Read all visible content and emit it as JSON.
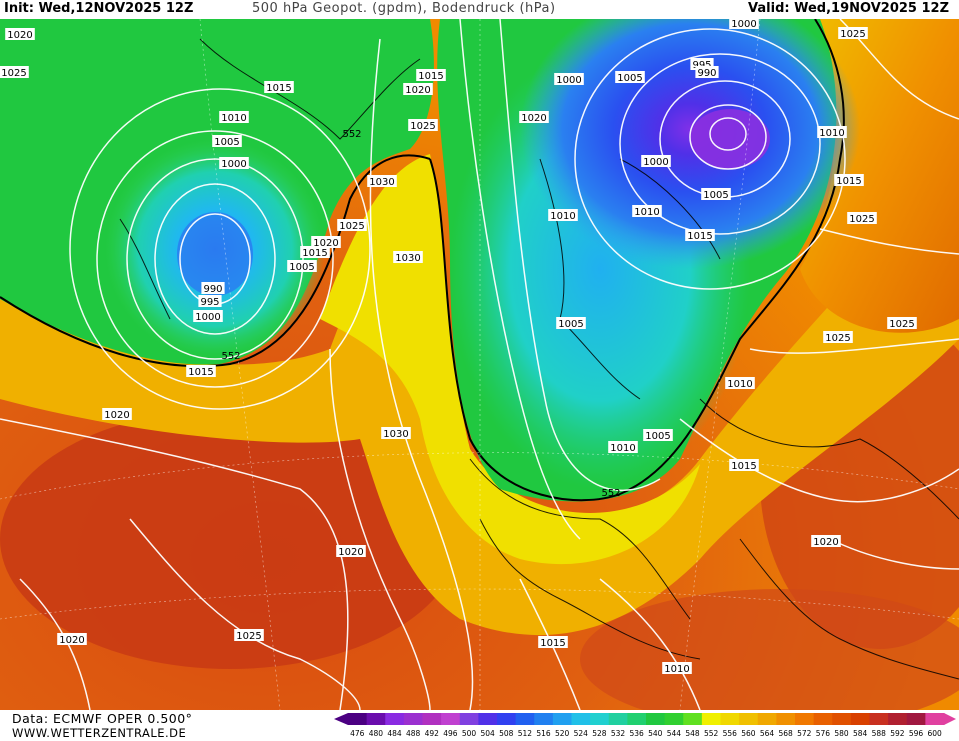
{
  "header": {
    "init": "Init: Wed,12NOV2025 12Z",
    "title": "500 hPa Geopot. (gpdm), Bodendruck (hPa)",
    "valid": "Valid: Wed,19NOV2025 12Z"
  },
  "footer": {
    "source": "Data: ECMWF OPER 0.500°",
    "site": "WWW.WETTERZENTRALE.DE"
  },
  "legend": {
    "labels": [
      "476",
      "480",
      "484",
      "488",
      "492",
      "496",
      "500",
      "504",
      "508",
      "512",
      "516",
      "520",
      "524",
      "528",
      "532",
      "536",
      "540",
      "544",
      "548",
      "552",
      "556",
      "560",
      "564",
      "568",
      "572",
      "576",
      "580",
      "584",
      "588",
      "592",
      "596",
      "600"
    ],
    "colors": [
      "#4b0082",
      "#6a0dad",
      "#8a2be2",
      "#9b30d0",
      "#b030c0",
      "#c040d0",
      "#8040e0",
      "#5030e8",
      "#3040f0",
      "#2060f0",
      "#2080f0",
      "#20a0f0",
      "#20c0e8",
      "#20d0d0",
      "#20d0a0",
      "#20d070",
      "#20c840",
      "#30d030",
      "#60e020",
      "#f0f000",
      "#f0d800",
      "#f0c000",
      "#f0a800",
      "#f09000",
      "#f07800",
      "#e86000",
      "#e05000",
      "#d84000",
      "#c83020",
      "#b02030",
      "#a01840",
      "#e040a0"
    ]
  },
  "isobars": [
    {
      "label": "1000"
    },
    {
      "label": "1020"
    },
    {
      "label": "1025"
    },
    {
      "label": "1015"
    },
    {
      "label": "1020"
    },
    {
      "label": "1015"
    },
    {
      "label": "1010"
    },
    {
      "label": "1005"
    },
    {
      "label": "1000"
    },
    {
      "label": "1025"
    },
    {
      "label": "1030"
    },
    {
      "label": "1025"
    },
    {
      "label": "1020"
    },
    {
      "label": "1015"
    },
    {
      "label": "1005"
    },
    {
      "label": "990"
    },
    {
      "label": "995"
    },
    {
      "label": "1000"
    },
    {
      "label": "1030"
    },
    {
      "label": "1015"
    },
    {
      "label": "1020"
    },
    {
      "label": "1030"
    },
    {
      "label": "1020"
    },
    {
      "label": "1010"
    },
    {
      "label": "1010"
    },
    {
      "label": "1015"
    },
    {
      "label": "1005"
    },
    {
      "label": "1005"
    },
    {
      "label": "1010"
    },
    {
      "label": "1015"
    },
    {
      "label": "1025"
    },
    {
      "label": "1010"
    },
    {
      "label": "1015"
    },
    {
      "label": "1025"
    },
    {
      "label": "1025"
    },
    {
      "label": "1020"
    },
    {
      "label": "1020"
    },
    {
      "label": "1015"
    },
    {
      "label": "1010"
    },
    {
      "label": "1005"
    },
    {
      "label": "1000"
    },
    {
      "label": "995"
    },
    {
      "label": "990"
    },
    {
      "label": "1005"
    },
    {
      "label": "1000"
    },
    {
      "label": "1010"
    },
    {
      "label": "1020"
    },
    {
      "label": "1025"
    },
    {
      "label": "1025"
    }
  ],
  "contour_552": [
    {
      "label": "552"
    },
    {
      "label": "552"
    },
    {
      "label": "552"
    }
  ]
}
